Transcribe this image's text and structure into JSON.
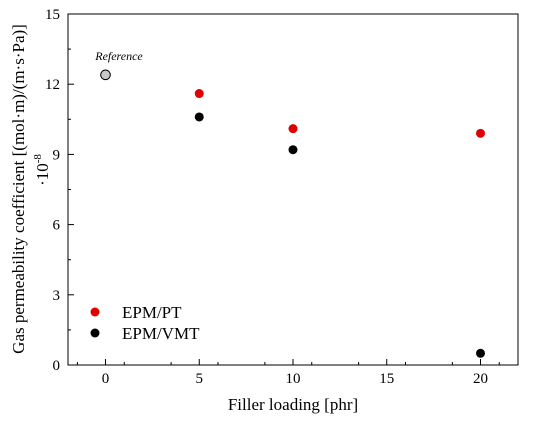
{
  "chart_data": {
    "type": "scatter",
    "xlabel": "Filler loading [phr]",
    "ylabel": "Gas permeability coefficient [(mol·m)/(m·s·Pa)]",
    "yscale_label": "·10",
    "yscale_exponent": "-8",
    "xlim": [
      -2,
      22
    ],
    "ylim": [
      0,
      15
    ],
    "xticks": [
      0,
      5,
      10,
      15,
      20
    ],
    "yticks": [
      0,
      3,
      6,
      9,
      12,
      15
    ],
    "xtick_labels": [
      "0",
      "5",
      "10",
      "15",
      "20"
    ],
    "ytick_labels": [
      "0",
      "3",
      "6",
      "9",
      "12",
      "15"
    ],
    "reference": {
      "label": "Reference",
      "x": 0,
      "y": 12.4,
      "color": "#c8c8c8"
    },
    "series": [
      {
        "name": "EPM/PT",
        "color": "#e00000",
        "x": [
          5,
          10,
          20
        ],
        "y": [
          11.6,
          10.1,
          9.9
        ]
      },
      {
        "name": "EPM/VMT",
        "color": "#000000",
        "x": [
          5,
          10,
          20
        ],
        "y": [
          10.6,
          9.2,
          0.5
        ]
      }
    ],
    "legend_position": "bottom-left",
    "grid": false
  }
}
